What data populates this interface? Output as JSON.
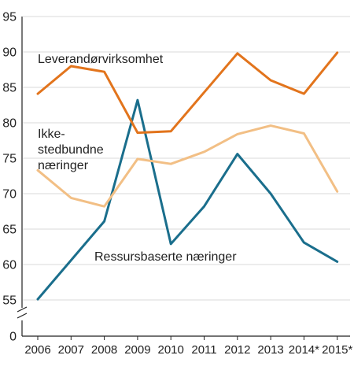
{
  "chart_data": {
    "type": "line",
    "title": "",
    "xlabel": "",
    "ylabel": "",
    "categories": [
      "2006",
      "2007",
      "2008",
      "2009",
      "2010",
      "2011",
      "2012",
      "2013",
      "2014*",
      "2015*"
    ],
    "y_ticks": [
      95,
      90,
      85,
      80,
      75,
      70,
      65,
      60,
      55,
      0
    ],
    "ylim": [
      55,
      95
    ],
    "axis_break": true,
    "grid": "horizontal",
    "series": [
      {
        "name": "Leverandørvirksomhet",
        "color": "#e2741c",
        "values": [
          84.1,
          88.0,
          87.2,
          78.6,
          78.8,
          84.3,
          89.8,
          86.0,
          84.1,
          89.9
        ]
      },
      {
        "name": "Ikke-stedbundne næringer",
        "label_lines": [
          "Ikke-",
          "stedbundne",
          "næringer"
        ],
        "color": "#f2bf85",
        "values": [
          73.3,
          69.4,
          68.2,
          74.9,
          74.2,
          75.9,
          78.4,
          79.6,
          78.5,
          70.3
        ]
      },
      {
        "name": "Ressursbaserte næringer",
        "color": "#1a6e8c",
        "values": [
          55.1,
          60.6,
          66.1,
          83.2,
          62.9,
          68.2,
          75.6,
          70.0,
          63.1,
          60.4
        ]
      }
    ]
  }
}
